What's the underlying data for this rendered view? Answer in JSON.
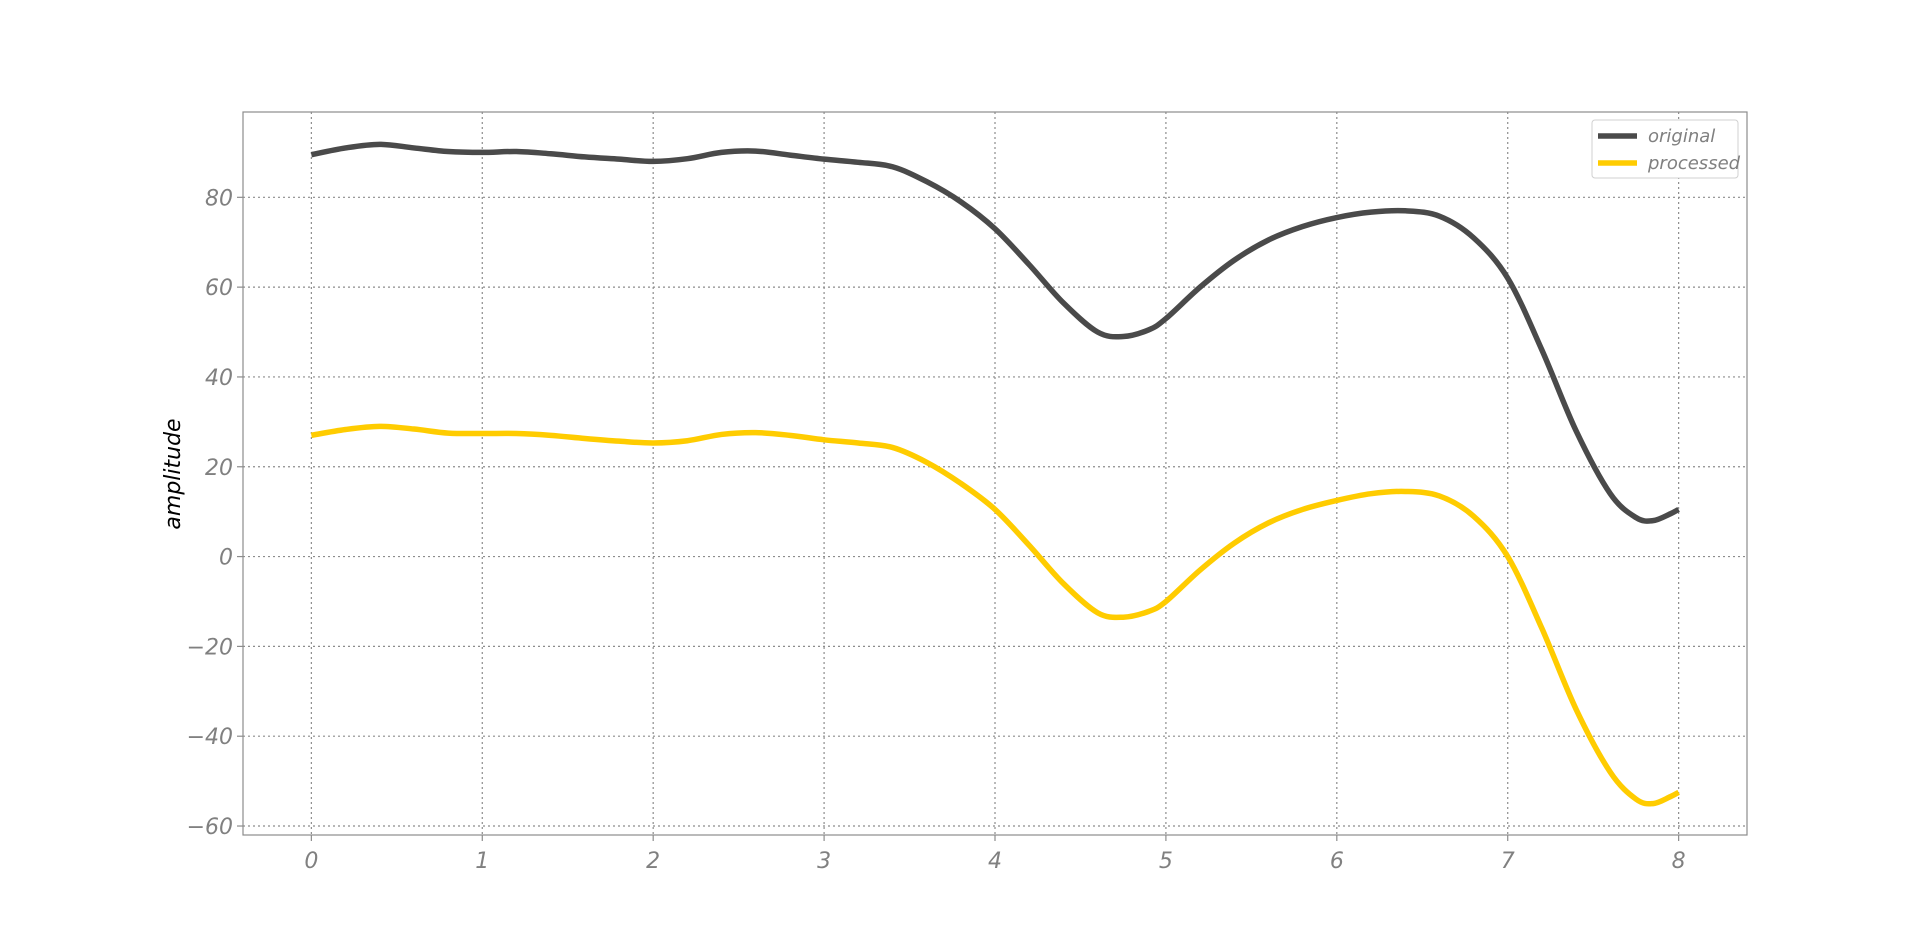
{
  "chart_data": {
    "type": "line",
    "title": "",
    "xlabel": "",
    "ylabel": "amplitude",
    "xlim": [
      -0.4,
      8.4
    ],
    "ylim": [
      -62,
      99
    ],
    "xticks": [
      0,
      1,
      2,
      3,
      4,
      5,
      6,
      7,
      8
    ],
    "yticks": [
      -60,
      -40,
      -20,
      0,
      20,
      40,
      60,
      80
    ],
    "grid": true,
    "legend_position": "top-right",
    "x": [
      0,
      0.2,
      0.4,
      0.6,
      0.8,
      1.0,
      1.2,
      1.4,
      1.6,
      1.8,
      2.0,
      2.2,
      2.4,
      2.6,
      2.8,
      3.0,
      3.2,
      3.4,
      3.6,
      3.8,
      4.0,
      4.2,
      4.4,
      4.6,
      4.75,
      4.9,
      5.0,
      5.2,
      5.4,
      5.6,
      5.8,
      6.0,
      6.2,
      6.4,
      6.6,
      6.8,
      7.0,
      7.2,
      7.4,
      7.6,
      7.75,
      7.85,
      7.95,
      8.0
    ],
    "series": [
      {
        "name": "original",
        "color": "#4a4a4a",
        "values": [
          89.5,
          91,
          91.8,
          91,
          90.2,
          90,
          90.2,
          89.7,
          89,
          88.5,
          88,
          88.6,
          90,
          90.3,
          89.4,
          88.5,
          87.8,
          86.8,
          83.5,
          79,
          73,
          65,
          56.5,
          50,
          49,
          50.5,
          53,
          60,
          66,
          70.5,
          73.5,
          75.5,
          76.7,
          77,
          75.8,
          71,
          62,
          46,
          28,
          14,
          8.7,
          8,
          9.5,
          10.5
        ]
      },
      {
        "name": "processed",
        "color": "#ffcc00",
        "values": [
          27,
          28.3,
          29,
          28.4,
          27.5,
          27.4,
          27.4,
          27,
          26.3,
          25.7,
          25.3,
          25.8,
          27.2,
          27.6,
          27,
          26,
          25.3,
          24.3,
          21,
          16.3,
          10.5,
          2.5,
          -6,
          -12.5,
          -13.5,
          -12.2,
          -10,
          -3,
          3,
          7.5,
          10.5,
          12.5,
          14,
          14.5,
          13.5,
          9,
          0,
          -16,
          -34,
          -48,
          -54,
          -55,
          -53.5,
          -52.5
        ]
      }
    ]
  }
}
